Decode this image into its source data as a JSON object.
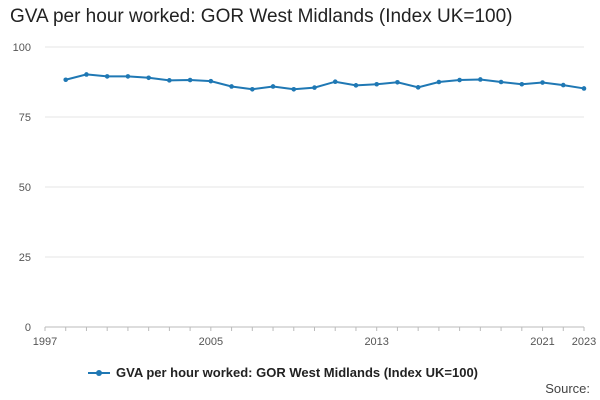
{
  "title": "GVA per hour worked: GOR West Midlands (Index UK=100)",
  "source_label": "Source:",
  "chart_data": {
    "type": "line",
    "title": "GVA per hour worked: GOR West Midlands (Index UK=100)",
    "xlabel": "",
    "ylabel": "",
    "xlim": [
      1997,
      2023
    ],
    "ylim": [
      0,
      100
    ],
    "y_ticks": [
      "0",
      "25",
      "50",
      "75",
      "100"
    ],
    "x_tick_labels": [
      "1997",
      "2005",
      "2013",
      "2021",
      "2023"
    ],
    "grid": true,
    "legend_position": "bottom",
    "x": [
      1998,
      1999,
      2000,
      2001,
      2002,
      2003,
      2004,
      2005,
      2006,
      2007,
      2008,
      2009,
      2010,
      2011,
      2012,
      2013,
      2014,
      2015,
      2016,
      2017,
      2018,
      2019,
      2020,
      2021,
      2022,
      2023
    ],
    "series": [
      {
        "name": "GVA per hour worked: GOR West Midlands (Index UK=100)",
        "color": "#1f78b4",
        "values": [
          88.3,
          90.2,
          89.5,
          89.5,
          89.0,
          88.1,
          88.2,
          87.8,
          85.9,
          84.9,
          85.9,
          84.9,
          85.5,
          87.6,
          86.3,
          86.7,
          87.4,
          85.6,
          87.5,
          88.2,
          88.4,
          87.5,
          86.7,
          87.3,
          86.4,
          85.2
        ]
      }
    ]
  }
}
